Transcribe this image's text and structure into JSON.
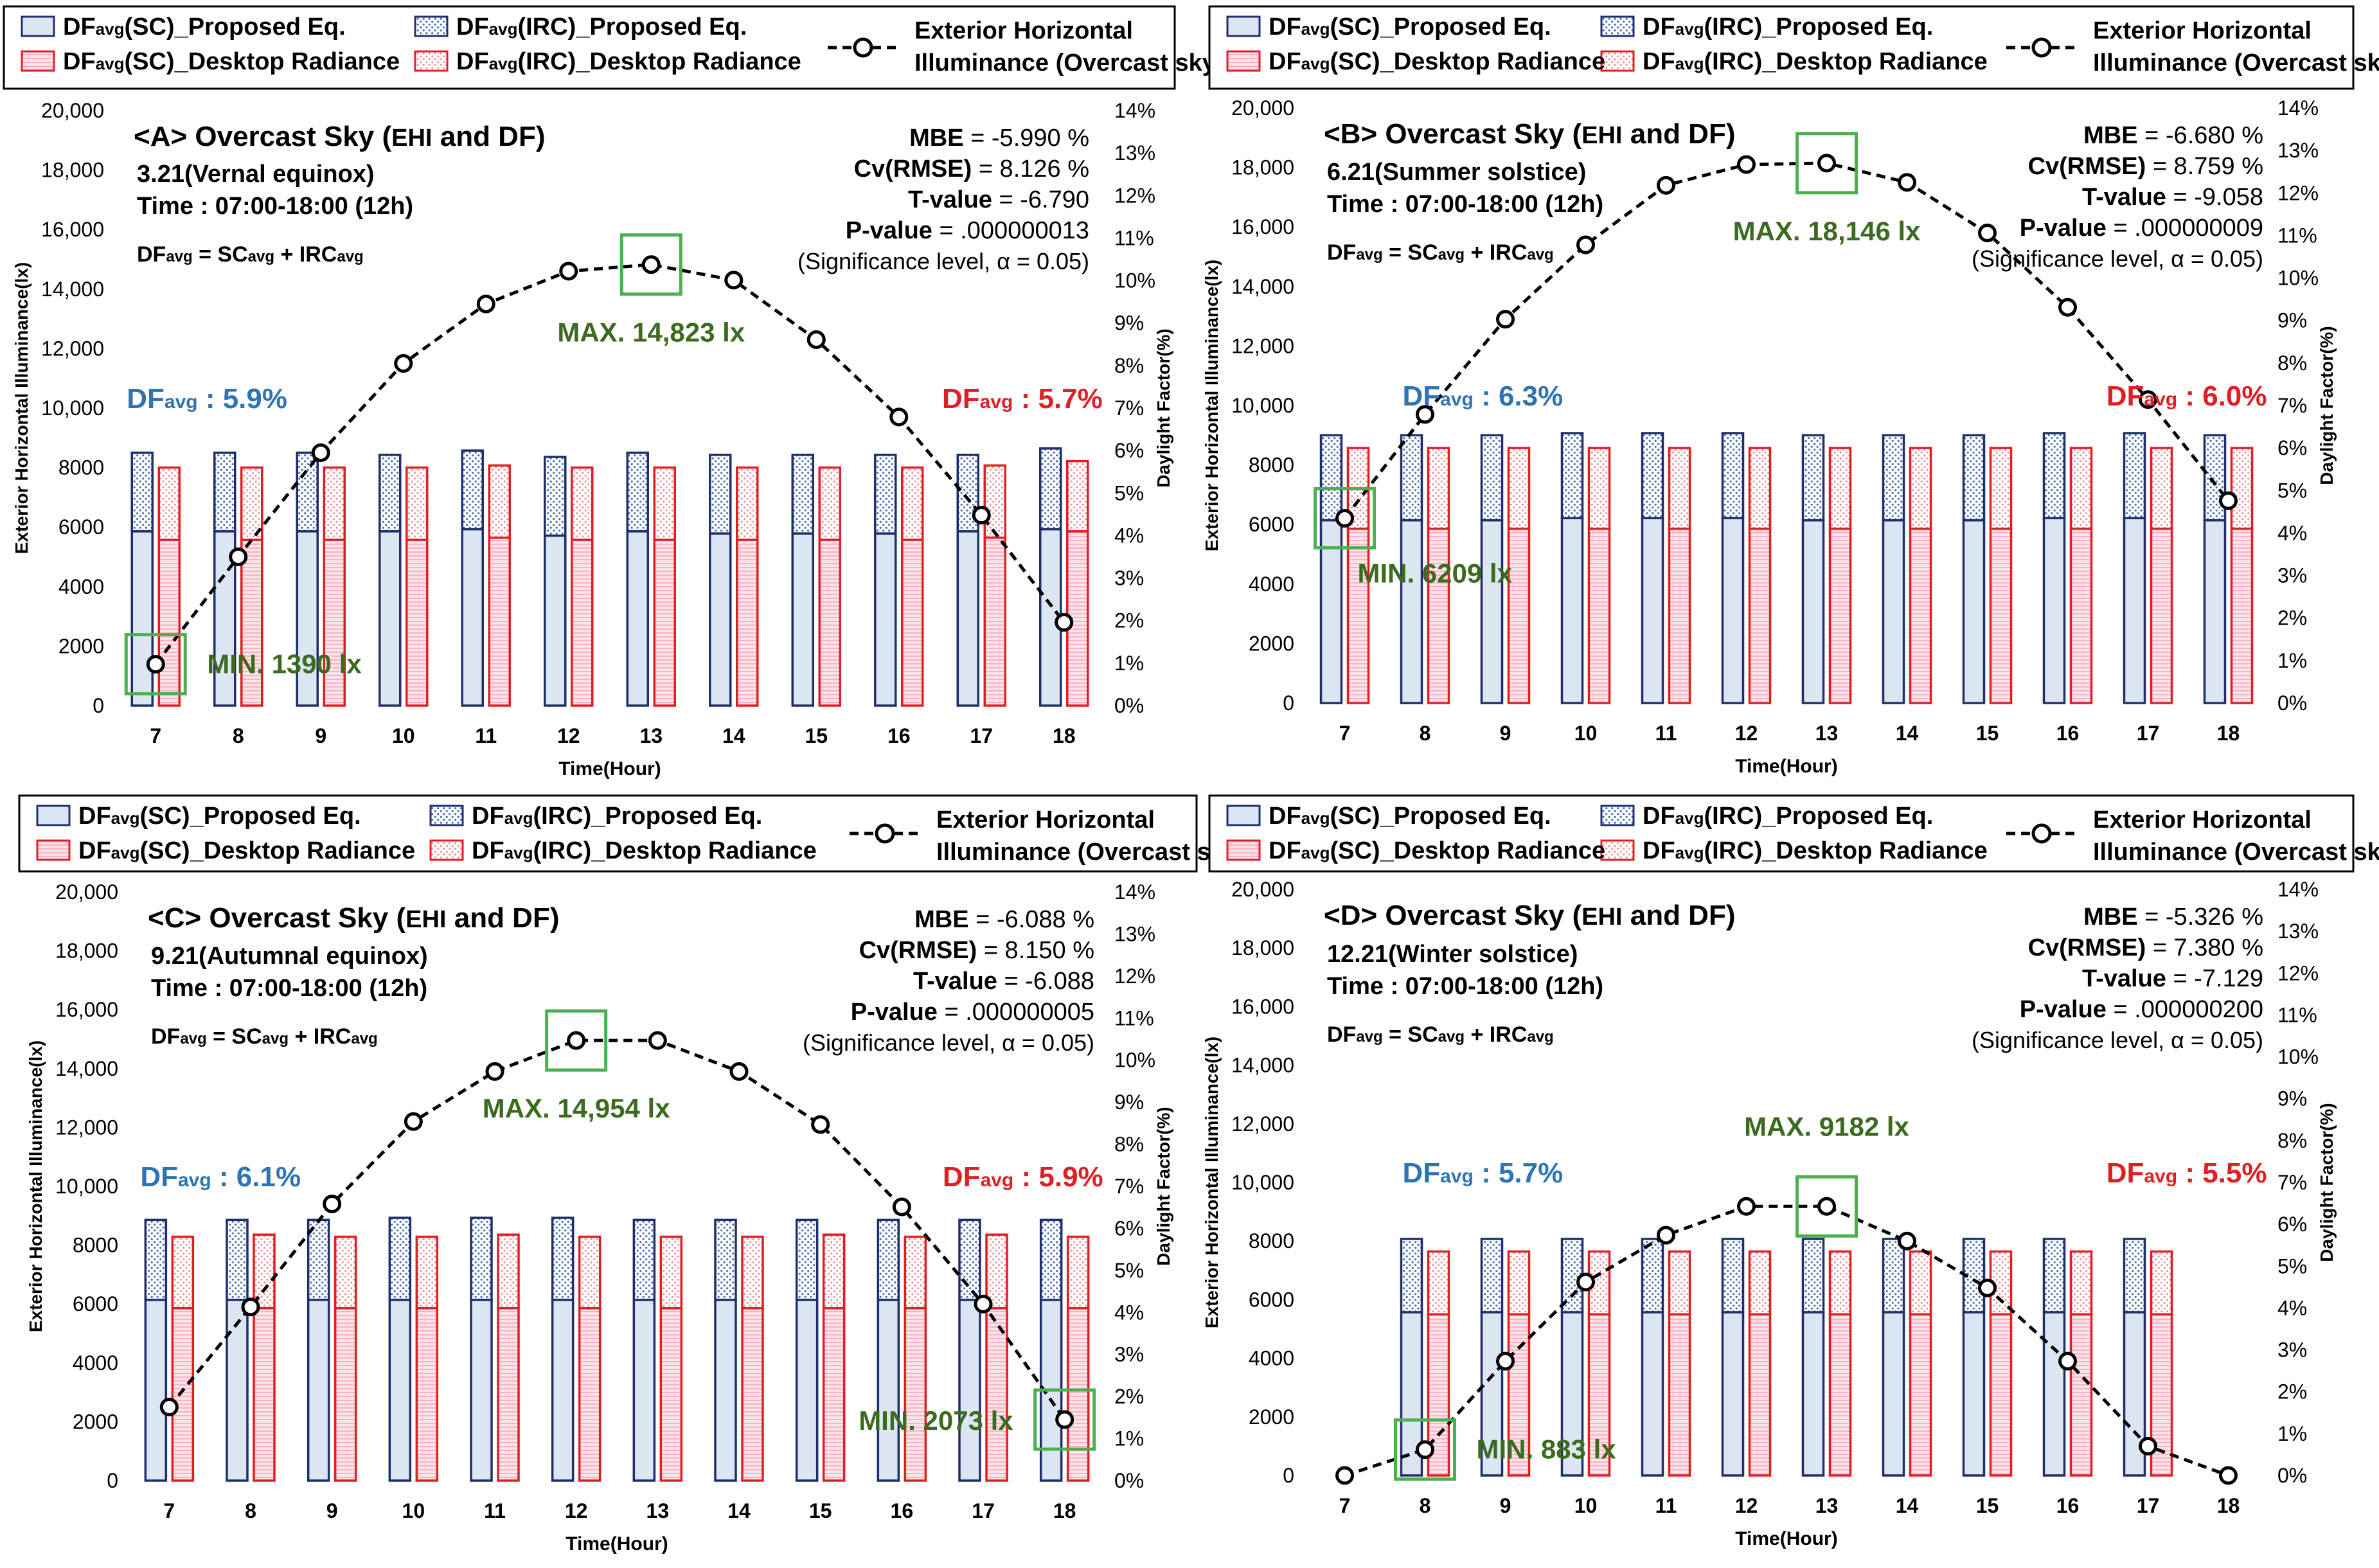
{
  "figure": {
    "legend_labels": {
      "sc_prop": "DFavg(SC)_Proposed Eq.",
      "irc_prop": "DFavg(IRC)_Proposed Eq.",
      "sc_dr": "DFavg(SC)_Desktop Radiance",
      "irc_dr": "DFavg(IRC)_Desktop Radiance",
      "ehi_line1": "Exterior Horizontal",
      "ehi_line2": "Illuminance (Overcast sky)"
    },
    "formula": "DFavg = SCavg + IRCavg",
    "colors": {
      "sc_prop_fill": "#dce6f2",
      "sc_prop_stroke": "#1f2f6b",
      "irc_prop_hatch": "#4a6fb3",
      "dr_stroke": "#e01f25",
      "dr_hatch": "#f08a8e",
      "sc_dr_fill": "#fde4ea",
      "callout_box": "#4caf50",
      "callout_text": "#3b6b1f",
      "df_left_text": "#2e74b5",
      "df_right_text": "#e01f25"
    }
  },
  "chart_data": [
    {
      "type": "bar+line",
      "panel": "A",
      "title": "<A> Overcast Sky (EHI and DF)",
      "date": "3.21(Vernal equinox)",
      "time_range": "Time : 07:00-18:00 (12h)",
      "xlabel": "Time(Hour)",
      "ylabel": "Exterior Horizontal Illuminance(lx)",
      "y2label": "Daylight Factor(%)",
      "ylim": [
        0,
        20000
      ],
      "y2lim": [
        0,
        14
      ],
      "yticks": [
        "0",
        "2000",
        "4000",
        "6000",
        "8000",
        "10,000",
        "12,000",
        "14,000",
        "16,000",
        "18,000",
        "20,000"
      ],
      "y2ticks": [
        "0%",
        "1%",
        "2%",
        "3%",
        "4%",
        "5%",
        "6%",
        "7%",
        "8%",
        "9%",
        "10%",
        "11%",
        "12%",
        "13%",
        "14%"
      ],
      "categories": [
        "7",
        "8",
        "9",
        "10",
        "11",
        "12",
        "13",
        "14",
        "15",
        "16",
        "17",
        "18"
      ],
      "series": [
        {
          "name": "DFavg(SC)_Proposed Eq.",
          "values": [
            4.1,
            4.1,
            4.1,
            4.1,
            4.15,
            4.0,
            4.1,
            4.05,
            4.05,
            4.05,
            4.1,
            4.15
          ]
        },
        {
          "name": "DFavg(IRC)_Proposed Eq.",
          "values": [
            1.85,
            1.85,
            1.85,
            1.8,
            1.85,
            1.85,
            1.85,
            1.85,
            1.85,
            1.85,
            1.8,
            1.9
          ]
        },
        {
          "name": "DFavg(SC)_Desktop Radiance",
          "values": [
            3.9,
            3.9,
            3.9,
            3.9,
            3.95,
            3.9,
            3.9,
            3.9,
            3.9,
            3.9,
            3.95,
            4.1
          ]
        },
        {
          "name": "DFavg(IRC)_Desktop Radiance",
          "values": [
            1.7,
            1.7,
            1.7,
            1.7,
            1.7,
            1.7,
            1.7,
            1.7,
            1.7,
            1.7,
            1.7,
            1.65
          ]
        },
        {
          "name": "Exterior Horizontal Illuminance (Overcast sky)",
          "values": [
            1390,
            5000,
            8500,
            11500,
            13500,
            14600,
            14823,
            14300,
            12300,
            9700,
            6400,
            2800
          ]
        }
      ],
      "stats": [
        {
          "label": "MBE",
          "value": "= -5.990 %"
        },
        {
          "label": "Cv(RMSE)",
          "value": "= 8.126 %"
        },
        {
          "label": "T-value",
          "value": "= -6.790"
        },
        {
          "label": "P-value",
          "value": "= .000000013"
        }
      ],
      "significance": "(Significance level, α = 0.05)",
      "df_left": "DFavg : 5.9%",
      "df_right": "DFavg : 5.7%",
      "max_label": "MAX. 14,823 lx",
      "min_label": "MIN. 1390 lx",
      "max_index": 6,
      "min_index": 0
    },
    {
      "type": "bar+line",
      "panel": "B",
      "title": "<B> Overcast Sky (EHI and DF)",
      "date": "6.21(Summer solstice)",
      "time_range": "Time : 07:00-18:00 (12h)",
      "xlabel": "Time(Hour)",
      "ylabel": "Exterior Horizontal Illuminance(lx)",
      "y2label": "Daylight Factor(%)",
      "ylim": [
        0,
        20000
      ],
      "y2lim": [
        0,
        14
      ],
      "yticks": [
        "0",
        "2000",
        "4000",
        "6000",
        "8000",
        "10,000",
        "12,000",
        "14,000",
        "16,000",
        "18,000",
        "20,000"
      ],
      "y2ticks": [
        "0%",
        "1%",
        "2%",
        "3%",
        "4%",
        "5%",
        "6%",
        "7%",
        "8%",
        "9%",
        "10%",
        "11%",
        "12%",
        "13%",
        "14%"
      ],
      "categories": [
        "7",
        "8",
        "9",
        "10",
        "11",
        "12",
        "13",
        "14",
        "15",
        "16",
        "17",
        "18"
      ],
      "series": [
        {
          "name": "DFavg(SC)_Proposed Eq.",
          "values": [
            4.3,
            4.3,
            4.3,
            4.35,
            4.35,
            4.35,
            4.3,
            4.3,
            4.3,
            4.35,
            4.35,
            4.3
          ]
        },
        {
          "name": "DFavg(IRC)_Proposed Eq.",
          "values": [
            2.0,
            2.0,
            2.0,
            2.0,
            2.0,
            2.0,
            2.0,
            2.0,
            2.0,
            2.0,
            2.0,
            2.0
          ]
        },
        {
          "name": "DFavg(SC)_Desktop Radiance",
          "values": [
            4.1,
            4.1,
            4.1,
            4.1,
            4.1,
            4.1,
            4.1,
            4.1,
            4.1,
            4.1,
            4.1,
            4.1
          ]
        },
        {
          "name": "DFavg(IRC)_Desktop Radiance",
          "values": [
            1.9,
            1.9,
            1.9,
            1.9,
            1.9,
            1.9,
            1.9,
            1.9,
            1.9,
            1.9,
            1.9,
            1.9
          ]
        },
        {
          "name": "Exterior Horizontal Illuminance (Overcast sky)",
          "values": [
            6209,
            9700,
            12900,
            15400,
            17400,
            18100,
            18146,
            17500,
            15800,
            13300,
            10200,
            6800
          ]
        }
      ],
      "stats": [
        {
          "label": "MBE",
          "value": "= -6.680 %"
        },
        {
          "label": "Cv(RMSE)",
          "value": "= 8.759 %"
        },
        {
          "label": "T-value",
          "value": "= -9.058"
        },
        {
          "label": "P-value",
          "value": "= .000000009"
        }
      ],
      "significance": "(Significance level, α = 0.05)",
      "df_left": "DFavg : 6.3%",
      "df_right": "DFavg : 6.0%",
      "max_label": "MAX. 18,146 lx",
      "min_label": "MIN. 6209 lx",
      "max_index": 6,
      "min_index": 0
    },
    {
      "type": "bar+line",
      "panel": "C",
      "title": "<C> Overcast Sky (EHI and DF)",
      "date": "9.21(Autumnal equinox)",
      "time_range": "Time : 07:00-18:00 (12h)",
      "xlabel": "Time(Hour)",
      "ylabel": "Exterior Horizontal Illuminance(lx)",
      "y2label": "Daylight Factor(%)",
      "ylim": [
        0,
        20000
      ],
      "y2lim": [
        0,
        14
      ],
      "yticks": [
        "0",
        "2000",
        "4000",
        "6000",
        "8000",
        "10,000",
        "12,000",
        "14,000",
        "16,000",
        "18,000",
        "20,000"
      ],
      "y2ticks": [
        "0%",
        "1%",
        "2%",
        "3%",
        "4%",
        "5%",
        "6%",
        "7%",
        "8%",
        "9%",
        "10%",
        "11%",
        "12%",
        "13%",
        "14%"
      ],
      "categories": [
        "7",
        "8",
        "9",
        "10",
        "11",
        "12",
        "13",
        "14",
        "15",
        "16",
        "17",
        "18"
      ],
      "series": [
        {
          "name": "DFavg(SC)_Proposed Eq.",
          "values": [
            4.3,
            4.3,
            4.3,
            4.3,
            4.3,
            4.3,
            4.3,
            4.3,
            4.3,
            4.3,
            4.3,
            4.3
          ]
        },
        {
          "name": "DFavg(IRC)_Proposed Eq.",
          "values": [
            1.9,
            1.9,
            1.9,
            1.95,
            1.95,
            1.95,
            1.9,
            1.9,
            1.9,
            1.9,
            1.9,
            1.9
          ]
        },
        {
          "name": "DFavg(SC)_Desktop Radiance",
          "values": [
            4.1,
            4.1,
            4.1,
            4.1,
            4.1,
            4.1,
            4.1,
            4.1,
            4.1,
            4.1,
            4.1,
            4.1
          ]
        },
        {
          "name": "DFavg(IRC)_Desktop Radiance",
          "values": [
            1.7,
            1.75,
            1.7,
            1.7,
            1.75,
            1.7,
            1.7,
            1.7,
            1.75,
            1.7,
            1.75,
            1.7
          ]
        },
        {
          "name": "Exterior Horizontal Illuminance (Overcast sky)",
          "values": [
            2500,
            5900,
            9400,
            12200,
            13900,
            14954,
            14954,
            13900,
            12100,
            9300,
            6000,
            2073
          ]
        }
      ],
      "stats": [
        {
          "label": "MBE",
          "value": "= -6.088 %"
        },
        {
          "label": "Cv(RMSE)",
          "value": "= 8.150 %"
        },
        {
          "label": "T-value",
          "value": "= -6.088"
        },
        {
          "label": "P-value",
          "value": "= .000000005"
        }
      ],
      "significance": "(Significance level, α = 0.05)",
      "df_left": "DFavg : 6.1%",
      "df_right": "DFavg : 5.9%",
      "max_label": "MAX. 14,954 lx",
      "min_label": "MIN. 2073 lx",
      "max_index": 5,
      "min_index": 11
    },
    {
      "type": "bar+line",
      "panel": "D",
      "title": "<D> Overcast Sky (EHI and DF)",
      "date": "12.21(Winter solstice)",
      "time_range": "Time : 07:00-18:00 (12h)",
      "xlabel": "Time(Hour)",
      "ylabel": "Exterior Horizontal Illuminance(lx)",
      "y2label": "Daylight Factor(%)",
      "ylim": [
        0,
        20000
      ],
      "y2lim": [
        0,
        14
      ],
      "yticks": [
        "0",
        "2000",
        "4000",
        "6000",
        "8000",
        "10,000",
        "12,000",
        "14,000",
        "16,000",
        "18,000",
        "20,000"
      ],
      "y2ticks": [
        "0%",
        "1%",
        "2%",
        "3%",
        "4%",
        "5%",
        "6%",
        "7%",
        "8%",
        "9%",
        "10%",
        "11%",
        "12%",
        "13%",
        "14%"
      ],
      "categories": [
        "7",
        "8",
        "9",
        "10",
        "11",
        "12",
        "13",
        "14",
        "15",
        "16",
        "17",
        "18"
      ],
      "series": [
        {
          "name": "DFavg(SC)_Proposed Eq.",
          "values": [
            null,
            3.9,
            3.9,
            3.9,
            3.9,
            3.9,
            3.9,
            3.9,
            3.9,
            3.9,
            3.9,
            null
          ]
        },
        {
          "name": "DFavg(IRC)_Proposed Eq.",
          "values": [
            null,
            1.75,
            1.75,
            1.75,
            1.75,
            1.75,
            1.75,
            1.75,
            1.75,
            1.75,
            1.75,
            null
          ]
        },
        {
          "name": "DFavg(SC)_Desktop Radiance",
          "values": [
            null,
            3.85,
            3.85,
            3.85,
            3.85,
            3.85,
            3.85,
            3.85,
            3.85,
            3.85,
            3.85,
            null
          ]
        },
        {
          "name": "DFavg(IRC)_Desktop Radiance",
          "values": [
            null,
            1.5,
            1.5,
            1.5,
            1.5,
            1.5,
            1.5,
            1.5,
            1.5,
            1.5,
            1.5,
            null
          ]
        },
        {
          "name": "Exterior Horizontal Illuminance (Overcast sky)",
          "values": [
            0,
            883,
            3900,
            6600,
            8200,
            9182,
            9182,
            8000,
            6400,
            3900,
            1000,
            0
          ]
        }
      ],
      "stats": [
        {
          "label": "MBE",
          "value": "= -5.326 %"
        },
        {
          "label": "Cv(RMSE)",
          "value": "= 7.380 %"
        },
        {
          "label": "T-value",
          "value": "= -7.129"
        },
        {
          "label": "P-value",
          "value": "= .000000200"
        }
      ],
      "significance": "(Significance level, α = 0.05)",
      "df_left": "DFavg : 5.7%",
      "df_right": "DFavg : 5.5%",
      "max_label": "MAX. 9182 lx",
      "min_label": "MIN. 883 lx",
      "max_index": 6,
      "min_index": 1
    }
  ]
}
